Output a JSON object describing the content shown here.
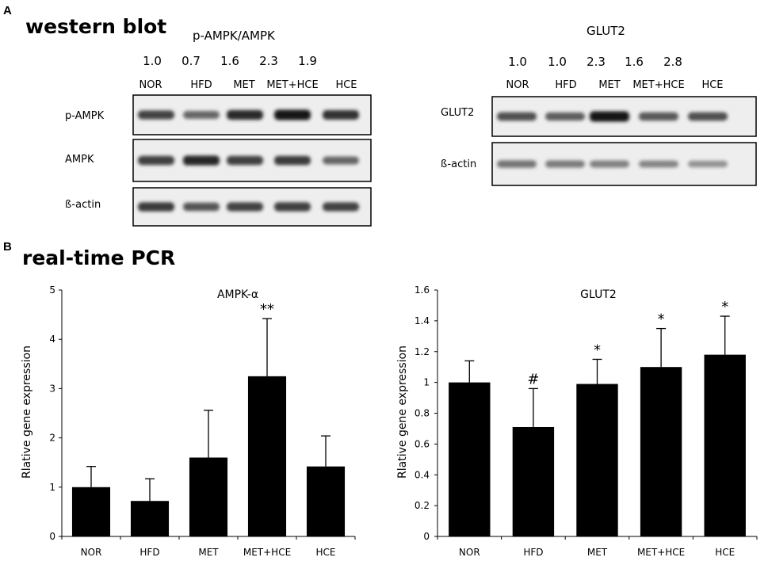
{
  "panel_a": {
    "letter": "A",
    "section_title": "western blot",
    "blots": [
      {
        "title": "p-AMPK/AMPK",
        "ratios": [
          "1.0",
          "0.7",
          "1.6",
          "2.3",
          "1.9"
        ],
        "lanes": [
          "NOR",
          "HFD",
          "MET",
          "MET+HCE",
          "HCE"
        ],
        "rows": [
          {
            "label": "p-AMPK",
            "intensity": [
              0.78,
              0.62,
              0.9,
              1.0,
              0.86
            ]
          },
          {
            "label": "AMPK",
            "intensity": [
              0.8,
              0.92,
              0.8,
              0.82,
              0.62
            ]
          },
          {
            "label": "ß-actin",
            "intensity": [
              0.82,
              0.7,
              0.78,
              0.8,
              0.78
            ]
          }
        ]
      },
      {
        "title": "GLUT2",
        "ratios": [
          "1.0",
          "1.0",
          "2.3",
          "1.6",
          "2.8"
        ],
        "lanes": [
          "NOR",
          "HFD",
          "MET",
          "MET+HCE",
          "HCE"
        ],
        "rows": [
          {
            "label": "GLUT2",
            "intensity": [
              0.72,
              0.66,
              1.0,
              0.68,
              0.72
            ]
          },
          {
            "label": "ß-actin",
            "intensity": [
              0.55,
              0.52,
              0.5,
              0.48,
              0.42
            ]
          }
        ]
      }
    ]
  },
  "panel_b": {
    "letter": "B",
    "section_title": "real-time PCR"
  },
  "chart_data": [
    {
      "type": "bar",
      "title": "AMPK-α",
      "ylabel": "Rlative gene expression",
      "xlabel": "",
      "categories": [
        "NOR",
        "HFD",
        "MET",
        "MET+HCE",
        "HCE"
      ],
      "values": [
        1.0,
        0.72,
        1.6,
        3.25,
        1.42
      ],
      "errors": [
        0.42,
        0.45,
        0.96,
        1.17,
        0.62
      ],
      "annotations": [
        "",
        "",
        "",
        "**",
        ""
      ],
      "ylim": [
        0,
        5
      ],
      "yticks": [
        "0",
        "1",
        "2",
        "3",
        "4",
        "5"
      ],
      "bar_color": "#000000",
      "grid": false
    },
    {
      "type": "bar",
      "title": "GLUT2",
      "ylabel": "Rlative gene expression",
      "xlabel": "",
      "categories": [
        "NOR",
        "HFD",
        "MET",
        "MET+HCE",
        "HCE"
      ],
      "values": [
        1.0,
        0.71,
        0.99,
        1.1,
        1.18
      ],
      "errors": [
        0.14,
        0.25,
        0.16,
        0.25,
        0.25
      ],
      "annotations": [
        "",
        "#",
        "*",
        "*",
        "*"
      ],
      "ylim": [
        0,
        1.6
      ],
      "yticks": [
        "0",
        "0.2",
        "0.4",
        "0.6",
        "0.8",
        "1",
        "1.2",
        "1.4",
        "1.6"
      ],
      "bar_color": "#000000",
      "grid": false
    }
  ]
}
